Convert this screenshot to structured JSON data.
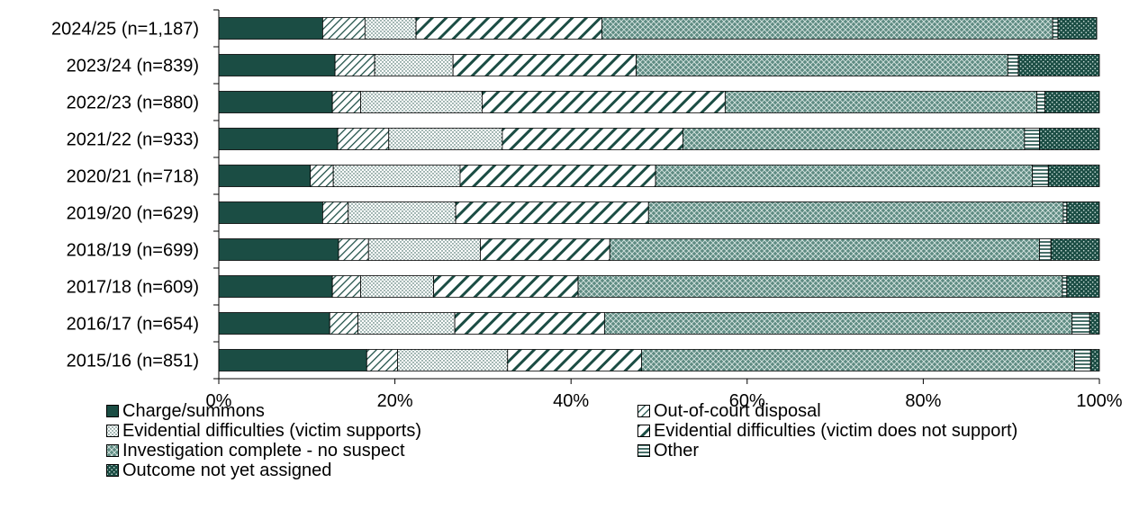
{
  "chart_data": {
    "type": "bar",
    "orientation": "horizontal",
    "stacked": true,
    "percent": true,
    "title": "",
    "xlabel": "",
    "ylabel": "",
    "xlim": [
      0,
      100
    ],
    "x_ticks": [
      "0%",
      "20%",
      "40%",
      "60%",
      "80%",
      "100%"
    ],
    "grid": false,
    "legend_position": "bottom",
    "categories": [
      "2024/25 (n=1,187)",
      "2023/24 (n=839)",
      "2022/23 (n=880)",
      "2021/22 (n=933)",
      "2020/21 (n=718)",
      "2019/20 (n=629)",
      "2018/19 (n=699)",
      "2017/18 (n=609)",
      "2016/17 (n=654)",
      "2015/16 (n=851)"
    ],
    "series": [
      {
        "name": "Charge/summons",
        "pattern": "solid",
        "values": [
          11.8,
          13.2,
          12.9,
          13.5,
          10.4,
          11.8,
          13.6,
          12.9,
          12.6,
          16.8
        ]
      },
      {
        "name": "Out-of-court disposal",
        "pattern": "diagonal-thin",
        "values": [
          4.8,
          4.5,
          3.2,
          5.8,
          2.6,
          2.9,
          3.4,
          3.2,
          3.2,
          3.5
        ]
      },
      {
        "name": "Evidential difficulties (victim supports)",
        "pattern": "dots",
        "values": [
          5.8,
          8.9,
          13.8,
          12.9,
          14.4,
          12.2,
          12.7,
          8.3,
          11.0,
          12.5
        ]
      },
      {
        "name": "Evidential difficulties (victim does not support)",
        "pattern": "diagonal-thick",
        "values": [
          21.1,
          20.8,
          27.6,
          20.5,
          22.2,
          21.9,
          14.7,
          16.4,
          17.0,
          15.2
        ]
      },
      {
        "name": "Investigation complete - no suspect",
        "pattern": "crosshatch",
        "values": [
          51.2,
          42.2,
          35.4,
          38.8,
          42.8,
          47.1,
          48.8,
          55.0,
          53.1,
          49.2
        ]
      },
      {
        "name": "Other",
        "pattern": "horizontal",
        "values": [
          0.6,
          1.2,
          0.9,
          1.7,
          1.8,
          0.4,
          1.3,
          0.5,
          2.0,
          1.8
        ]
      },
      {
        "name": "Outcome not yet assigned",
        "pattern": "dark-dots",
        "values": [
          4.4,
          9.2,
          6.2,
          6.8,
          5.8,
          3.7,
          5.5,
          3.7,
          1.1,
          1.0
        ]
      }
    ],
    "colors": {
      "dark": "#1b4d44",
      "light_fill": "#ffffff",
      "crosshatch_bg": "#5e8b82",
      "stroke": "#000000"
    }
  }
}
